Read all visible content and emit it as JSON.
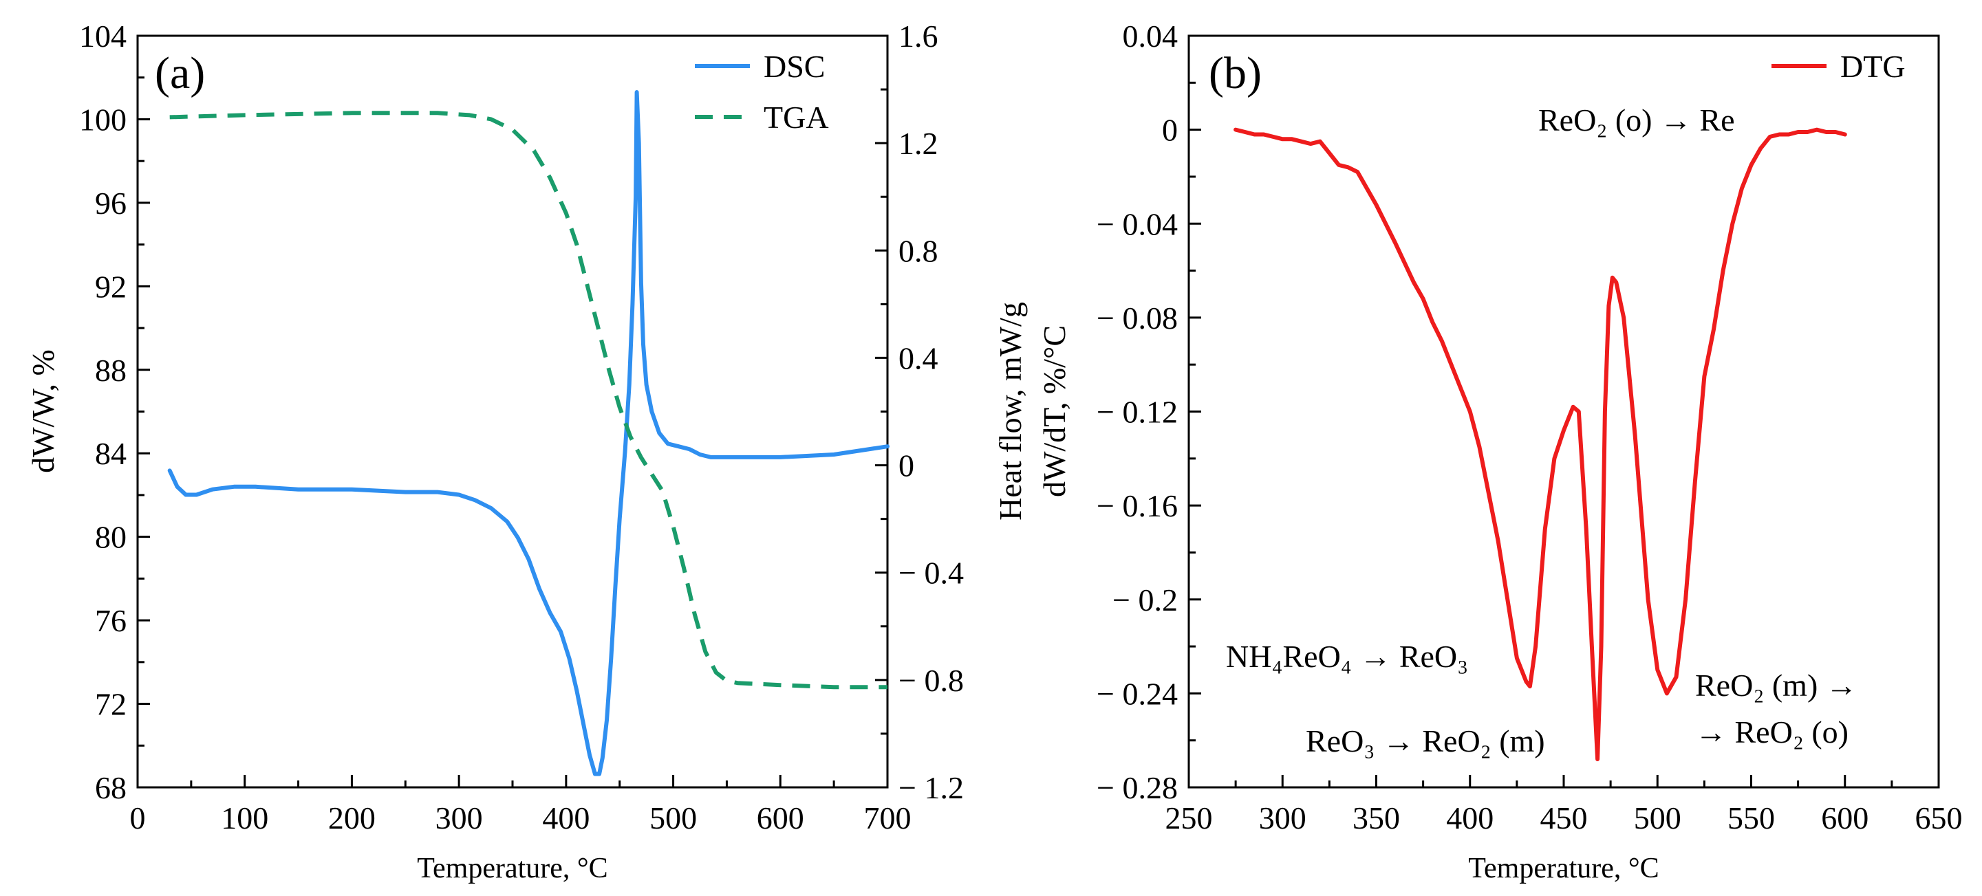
{
  "chart_data": [
    {
      "panel": "(a)",
      "type": "line",
      "xlabel": "Temperature, °C",
      "ylabel_left": "dW/W, %",
      "ylabel_right": "Heat flow, mW/g",
      "xlim": [
        0,
        700
      ],
      "ylim_left": [
        68,
        104
      ],
      "ylim_right": [
        -1.2,
        1.6
      ],
      "xticks": [
        0,
        100,
        200,
        300,
        400,
        500,
        600,
        700
      ],
      "xtick_labels": [
        "0",
        "100",
        "200",
        "300",
        "400",
        "500",
        "600",
        "700"
      ],
      "yticks_left": [
        68,
        72,
        76,
        80,
        84,
        88,
        92,
        96,
        100,
        104
      ],
      "ytick_labels_left": [
        "68",
        "72",
        "76",
        "80",
        "84",
        "88",
        "92",
        "96",
        "100",
        "104"
      ],
      "yticks_right": [
        -1.2,
        -0.8,
        -0.4,
        0,
        0.4,
        0.8,
        1.2,
        1.6
      ],
      "ytick_labels_right": [
        "− 1.2",
        "− 0.8",
        "− 0.4",
        "0",
        "0.4",
        "0.8",
        "1.2",
        "1.6"
      ],
      "legend_position": "top-right",
      "series": [
        {
          "name": "DSC",
          "axis": "right",
          "color": "#2f8ff0",
          "dash": "solid",
          "x": [
            30,
            37,
            45,
            55,
            70,
            90,
            110,
            150,
            200,
            250,
            280,
            300,
            315,
            330,
            345,
            355,
            365,
            375,
            385,
            395,
            403,
            410,
            417,
            422,
            427,
            431,
            434,
            438,
            442,
            446,
            450,
            455,
            459,
            462,
            465,
            466,
            468,
            470,
            472,
            475,
            480,
            487,
            495,
            505,
            515,
            525,
            535,
            550,
            600,
            650,
            700
          ],
          "y": [
            -0.02,
            -0.08,
            -0.11,
            -0.11,
            -0.09,
            -0.08,
            -0.08,
            -0.09,
            -0.09,
            -0.1,
            -0.1,
            -0.11,
            -0.13,
            -0.16,
            -0.21,
            -0.27,
            -0.35,
            -0.46,
            -0.55,
            -0.62,
            -0.72,
            -0.84,
            -0.98,
            -1.08,
            -1.15,
            -1.15,
            -1.09,
            -0.95,
            -0.72,
            -0.45,
            -0.2,
            0.05,
            0.3,
            0.6,
            1.0,
            1.39,
            1.2,
            0.68,
            0.45,
            0.3,
            0.2,
            0.12,
            0.08,
            0.07,
            0.06,
            0.04,
            0.03,
            0.03,
            0.03,
            0.04,
            0.07
          ]
        },
        {
          "name": "TGA",
          "axis": "left",
          "color": "#1a9c6b",
          "dash": "dashed",
          "x": [
            30,
            100,
            200,
            280,
            310,
            330,
            350,
            370,
            385,
            400,
            410,
            420,
            430,
            440,
            450,
            460,
            470,
            480,
            490,
            500,
            510,
            520,
            530,
            540,
            550,
            560,
            600,
            650,
            700
          ],
          "y": [
            100.1,
            100.2,
            100.3,
            100.3,
            100.2,
            100.0,
            99.5,
            98.5,
            97.2,
            95.5,
            94.0,
            92.0,
            90.0,
            88.0,
            86.2,
            84.8,
            83.8,
            83.0,
            82.2,
            80.5,
            78.5,
            76.3,
            74.5,
            73.5,
            73.1,
            73.0,
            72.9,
            72.8,
            72.8
          ]
        }
      ]
    },
    {
      "panel": "(b)",
      "type": "line",
      "xlabel": "Temperature, °C",
      "ylabel": "dW/dT, %/°C",
      "xlim": [
        250,
        650
      ],
      "ylim": [
        -0.28,
        0.04
      ],
      "xticks": [
        250,
        300,
        350,
        400,
        450,
        500,
        550,
        600,
        650
      ],
      "xtick_labels": [
        "250",
        "300",
        "350",
        "400",
        "450",
        "500",
        "550",
        "600",
        "650"
      ],
      "yticks": [
        -0.28,
        -0.24,
        -0.2,
        -0.16,
        -0.12,
        -0.08,
        -0.04,
        0,
        0.04
      ],
      "ytick_labels": [
        "− 0.28",
        "− 0.24",
        "− 0.2",
        "− 0.16",
        "− 0.12",
        "− 0.08",
        "− 0.04",
        "0",
        "0.04"
      ],
      "legend_position": "top-right",
      "series": [
        {
          "name": "DTG",
          "color": "#ee1c1c",
          "dash": "solid",
          "x": [
            275,
            280,
            285,
            290,
            295,
            300,
            305,
            310,
            315,
            320,
            325,
            330,
            335,
            340,
            345,
            350,
            360,
            370,
            375,
            380,
            385,
            390,
            395,
            400,
            405,
            410,
            415,
            420,
            425,
            430,
            432,
            435,
            440,
            445,
            450,
            455,
            458,
            462,
            465,
            468,
            470,
            472,
            474,
            476,
            478,
            482,
            488,
            495,
            500,
            505,
            510,
            515,
            520,
            525,
            530,
            535,
            540,
            545,
            550,
            555,
            560,
            565,
            570,
            575,
            580,
            585,
            590,
            595,
            600
          ],
          "y": [
            0.0,
            -0.001,
            -0.002,
            -0.002,
            -0.003,
            -0.004,
            -0.004,
            -0.005,
            -0.006,
            -0.005,
            -0.01,
            -0.015,
            -0.016,
            -0.018,
            -0.025,
            -0.032,
            -0.048,
            -0.065,
            -0.072,
            -0.082,
            -0.09,
            -0.1,
            -0.11,
            -0.12,
            -0.135,
            -0.155,
            -0.175,
            -0.2,
            -0.225,
            -0.235,
            -0.237,
            -0.22,
            -0.17,
            -0.14,
            -0.128,
            -0.118,
            -0.12,
            -0.17,
            -0.22,
            -0.268,
            -0.22,
            -0.12,
            -0.075,
            -0.063,
            -0.065,
            -0.08,
            -0.13,
            -0.2,
            -0.23,
            -0.24,
            -0.233,
            -0.2,
            -0.15,
            -0.105,
            -0.085,
            -0.06,
            -0.04,
            -0.025,
            -0.015,
            -0.008,
            -0.003,
            -0.002,
            -0.002,
            -0.001,
            -0.001,
            0.0,
            -0.001,
            -0.001,
            -0.002
          ]
        }
      ],
      "annotations": [
        {
          "id": "a1",
          "text": "ReO₂ (o)  → Re"
        },
        {
          "id": "a2",
          "text": "NH₄ReO₄ → ReO₃"
        },
        {
          "id": "a3",
          "text": "ReO₃ → ReO₂ (m)"
        },
        {
          "id": "a4",
          "text": "ReO₂ (m)  →"
        },
        {
          "id": "a5",
          "text": "→ ReO₂ (o)"
        }
      ]
    }
  ]
}
